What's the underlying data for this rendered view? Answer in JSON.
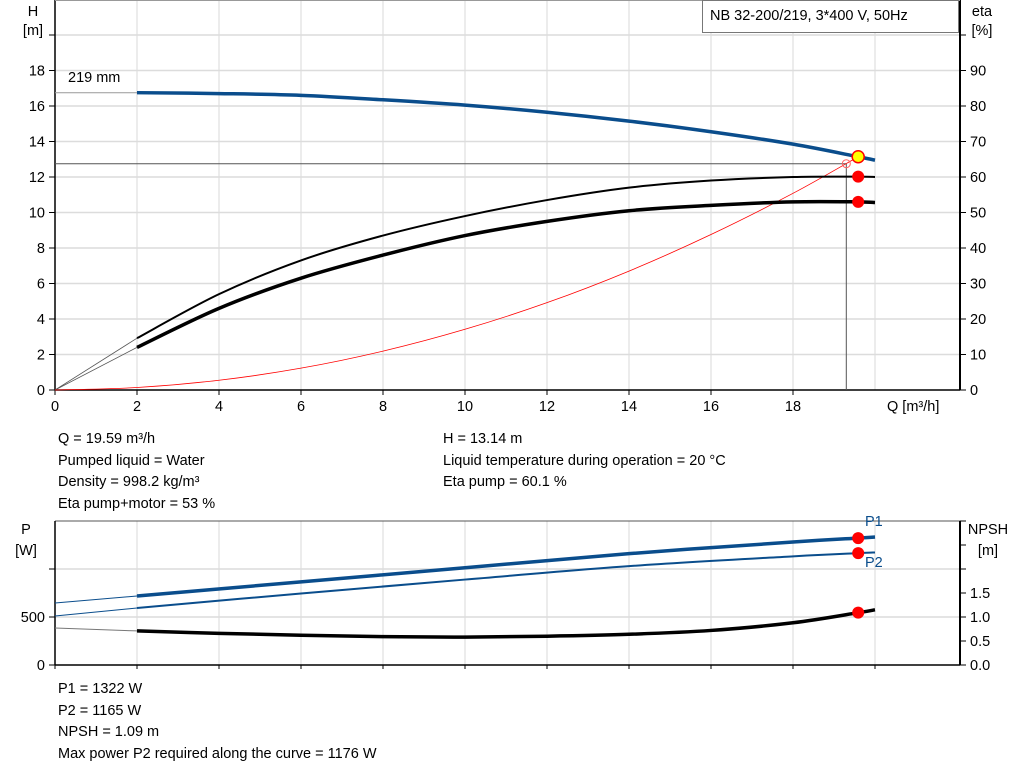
{
  "chart_data": [
    {
      "type": "line",
      "title": "NB 32-200/219, 3*400 V, 50Hz",
      "xlabel": "Q [m³/h]",
      "ylabel": "H\n[m]",
      "ylabel_lines": [
        "H",
        "[m]"
      ],
      "y2label_lines": [
        "eta",
        "[%]"
      ],
      "xlim": [
        0,
        22
      ],
      "ylim": [
        0,
        22
      ],
      "y2lim": [
        0,
        110
      ],
      "xticks": [
        "0",
        "2",
        "4",
        "6",
        "8",
        "10",
        "12",
        "14",
        "16",
        "18"
      ],
      "yticks": [
        "0",
        "2",
        "4",
        "6",
        "8",
        "10",
        "12",
        "14",
        "16",
        "18"
      ],
      "y2ticks": [
        "0",
        "10",
        "20",
        "30",
        "40",
        "50",
        "60",
        "70",
        "80",
        "90"
      ],
      "grid": true,
      "curve_label": "219 mm",
      "series": [
        {
          "key": "H",
          "axis": "left",
          "color": "#0a4d8c",
          "x": [
            2,
            4,
            6,
            8,
            10,
            12,
            14,
            16,
            18,
            19.59,
            20
          ],
          "y": [
            16.75,
            16.7,
            16.6,
            16.35,
            16.05,
            15.65,
            15.15,
            14.55,
            13.85,
            13.14,
            12.95
          ]
        },
        {
          "key": "eta_pump",
          "axis": "right",
          "color": "#000000",
          "x": [
            2,
            4,
            6,
            8,
            10,
            12,
            14,
            16,
            18,
            19.59,
            20
          ],
          "y": [
            14.6,
            27,
            36.5,
            43.5,
            49,
            53.5,
            57,
            59,
            60,
            60.1,
            60
          ]
        },
        {
          "key": "eta_pump_motor",
          "axis": "right",
          "color": "#000000",
          "x": [
            2,
            4,
            6,
            8,
            10,
            12,
            14,
            16,
            18,
            19.59,
            20
          ],
          "y": [
            12,
            23,
            31.5,
            38,
            43.5,
            47.5,
            50.5,
            52,
            53,
            53,
            52.8
          ]
        },
        {
          "key": "system",
          "axis": "left",
          "color": "#ff0000",
          "x": [
            0,
            2,
            4,
            6,
            8,
            10,
            12,
            14,
            16,
            18,
            19.59
          ],
          "y": [
            0,
            0.14,
            0.55,
            1.23,
            2.19,
            3.42,
            4.92,
            6.7,
            8.76,
            11.08,
            13.14
          ]
        }
      ],
      "operating_point": {
        "Q": 19.59,
        "H": 13.14,
        "eta_pump": 60.1,
        "eta_pump_motor": 53
      },
      "reference_point": {
        "Q": 19.3,
        "H": 12.75
      }
    },
    {
      "type": "line",
      "ylabel_lines": [
        "P",
        "[W]"
      ],
      "y2label_lines": [
        "NPSH",
        "[m]"
      ],
      "xlim": [
        0,
        22
      ],
      "ylim": [
        0,
        1500
      ],
      "y2lim": [
        0,
        3
      ],
      "yticks": [
        "0",
        "500"
      ],
      "y2ticks": [
        "0.0",
        "0.5",
        "1.0",
        "1.5"
      ],
      "grid": true,
      "series": [
        {
          "key": "P1",
          "name": "P1",
          "axis": "left",
          "color": "#0a4d8c",
          "x": [
            0,
            2,
            6,
            10,
            14,
            18,
            19.59,
            20
          ],
          "y": [
            646,
            719,
            866,
            1013,
            1160,
            1281,
            1322,
            1333
          ]
        },
        {
          "key": "P2",
          "name": "P2",
          "axis": "left",
          "color": "#0a4d8c",
          "x": [
            0,
            2,
            6,
            10,
            14,
            18,
            19.59,
            20
          ],
          "y": [
            510,
            594,
            745,
            890,
            1030,
            1132,
            1165,
            1172
          ]
        },
        {
          "key": "NPSH",
          "axis": "right",
          "color": "#000000",
          "x": [
            0,
            2,
            4,
            6,
            8,
            10,
            12,
            14,
            16,
            18,
            19.59,
            20
          ],
          "y": [
            0.77,
            0.71,
            0.66,
            0.62,
            0.59,
            0.58,
            0.6,
            0.64,
            0.72,
            0.88,
            1.09,
            1.15
          ]
        }
      ],
      "operating_point": {
        "Q": 19.59,
        "P1": 1322,
        "P2": 1165,
        "NPSH": 1.09
      }
    }
  ],
  "info_top_left": [
    "Q = 19.59 m³/h",
    "Pumped liquid = Water",
    "Density = 998.2 kg/m³",
    "Eta pump+motor = 53 %"
  ],
  "info_top_right": [
    "H = 13.14 m",
    "Liquid temperature during operation = 20 °C",
    "Eta pump = 60.1 %"
  ],
  "info_bottom": [
    "P1 = 1322 W",
    "P2 = 1165 W",
    "NPSH = 1.09 m",
    "Max power P2 required along the curve = 1176 W"
  ]
}
